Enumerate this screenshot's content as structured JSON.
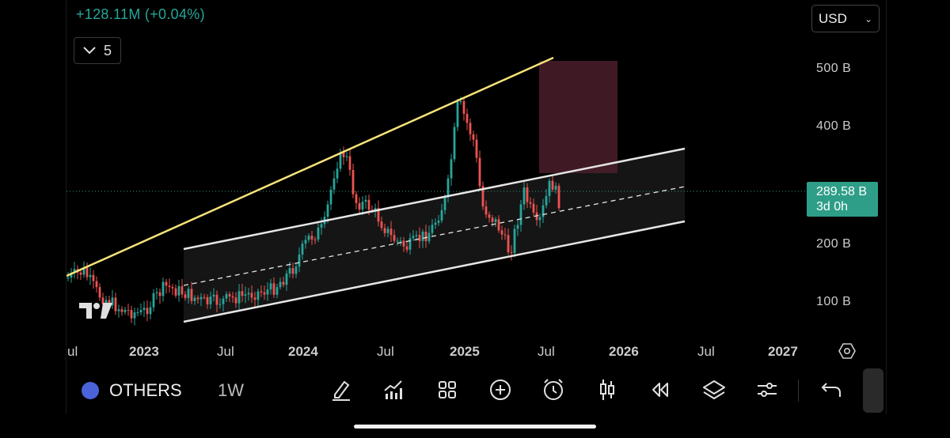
{
  "header": {
    "change_text": "+128.11M (+0.04%)",
    "indicators_count": "5",
    "currency": "USD"
  },
  "price_scale": {
    "labels": [
      "500 B",
      "400 B",
      "200 B",
      "100 B"
    ],
    "current_price": "289.58 B",
    "countdown": "3d 0h"
  },
  "time_scale": {
    "labels": [
      "ul",
      "2023",
      "Jul",
      "2024",
      "Jul",
      "2025",
      "Jul",
      "2026",
      "Jul",
      "2027"
    ]
  },
  "toolbar": {
    "symbol": "OTHERS",
    "interval": "1W",
    "icons": [
      "drawing-tools-icon",
      "indicators-icon",
      "layouts-icon",
      "add-icon",
      "alert-icon",
      "chart-type-icon",
      "replay-icon",
      "layers-icon",
      "settings-icon",
      "undo-icon"
    ]
  },
  "colors": {
    "up": "#26a69a",
    "down": "#ef5350",
    "trendline": "#f5e37a",
    "channel": "#e6e6e6",
    "zone": "#4a1f2c",
    "price_tag": "#2e9e88"
  }
}
